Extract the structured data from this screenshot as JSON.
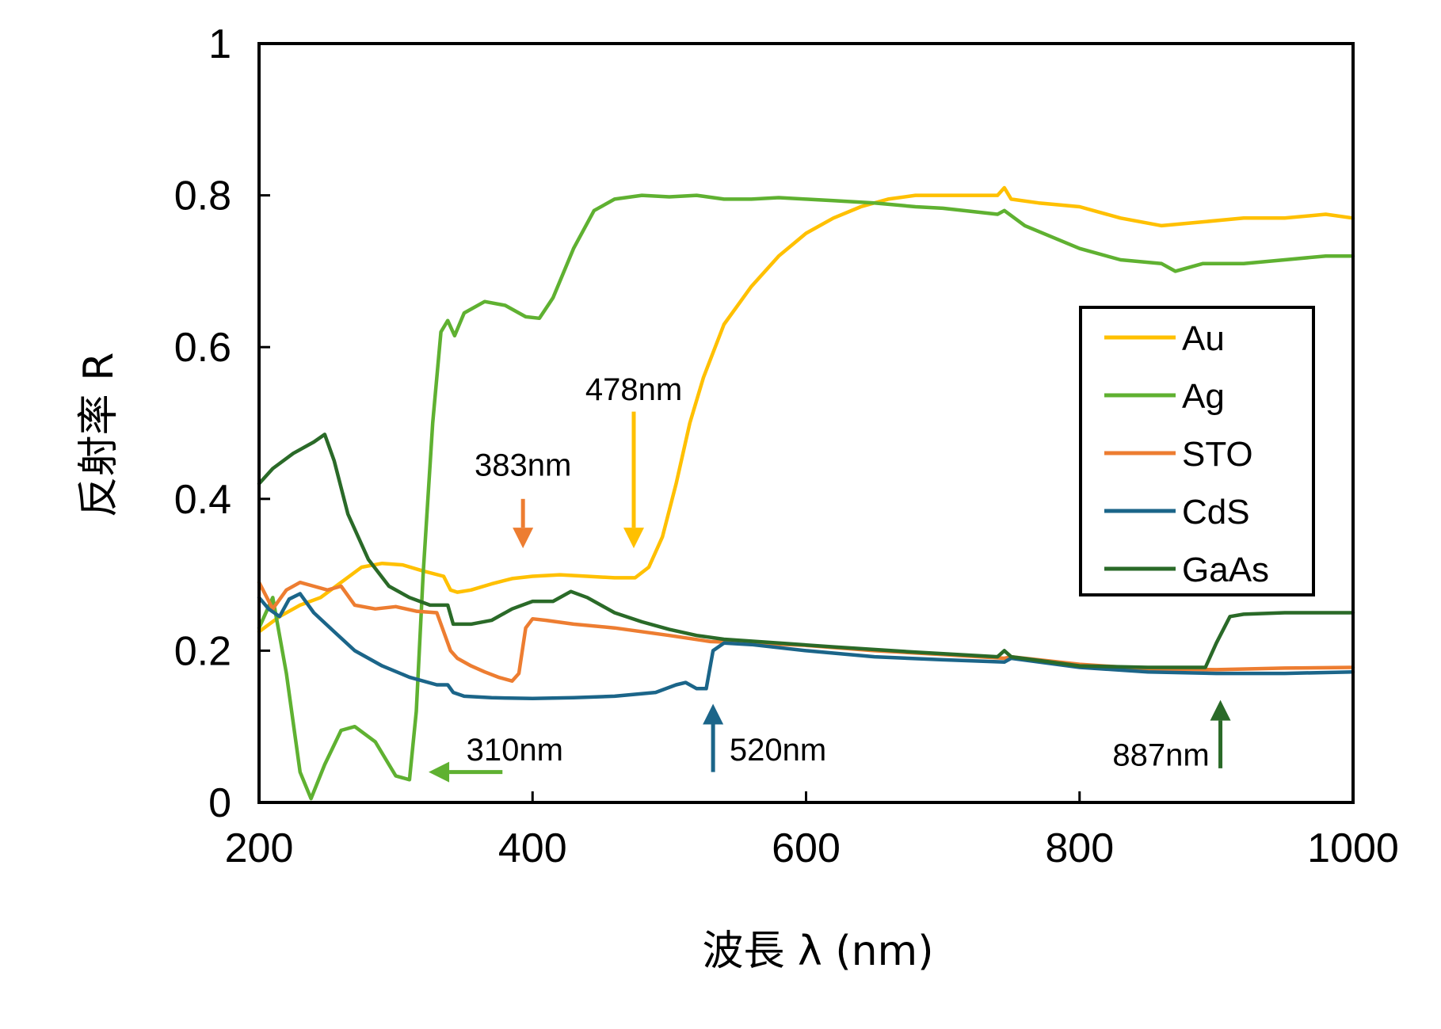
{
  "chart_data": {
    "type": "line",
    "xlabel": "波長 λ (nm)",
    "ylabel": "反射率 R",
    "xlim": [
      200,
      1000
    ],
    "ylim": [
      0,
      1
    ],
    "xticks": [
      200,
      400,
      600,
      800,
      1000
    ],
    "yticks": [
      0,
      0.2,
      0.4,
      0.6,
      0.8,
      1
    ],
    "xtick_labels": [
      "200",
      "400",
      "600",
      "800",
      "1000"
    ],
    "ytick_labels": [
      "0",
      "0.2",
      "0.4",
      "0.6",
      "0.8",
      "1"
    ],
    "grid": false,
    "legend_position": "right",
    "series": [
      {
        "name": "Au",
        "color": "#FFC000",
        "x": [
          200,
          215,
          230,
          245,
          260,
          275,
          290,
          305,
          320,
          335,
          340,
          345,
          355,
          370,
          385,
          400,
          420,
          440,
          460,
          475,
          485,
          495,
          505,
          515,
          525,
          540,
          560,
          580,
          600,
          620,
          640,
          660,
          680,
          700,
          720,
          740,
          745,
          750,
          770,
          800,
          830,
          860,
          890,
          920,
          950,
          980,
          1000
        ],
        "y": [
          0.225,
          0.245,
          0.26,
          0.27,
          0.29,
          0.31,
          0.315,
          0.313,
          0.305,
          0.298,
          0.28,
          0.277,
          0.28,
          0.288,
          0.295,
          0.298,
          0.3,
          0.298,
          0.296,
          0.296,
          0.31,
          0.35,
          0.42,
          0.5,
          0.56,
          0.63,
          0.68,
          0.72,
          0.75,
          0.77,
          0.785,
          0.795,
          0.8,
          0.8,
          0.8,
          0.8,
          0.81,
          0.795,
          0.79,
          0.785,
          0.77,
          0.76,
          0.765,
          0.77,
          0.77,
          0.775,
          0.77
        ]
      },
      {
        "name": "Ag",
        "color": "#5FB131",
        "x": [
          200,
          210,
          220,
          230,
          238,
          248,
          260,
          270,
          285,
          300,
          310,
          315,
          320,
          327,
          333,
          338,
          343,
          350,
          365,
          380,
          395,
          405,
          415,
          430,
          445,
          460,
          480,
          500,
          520,
          540,
          560,
          580,
          600,
          620,
          650,
          680,
          700,
          740,
          745,
          760,
          800,
          830,
          860,
          870,
          890,
          920,
          950,
          980,
          1000
        ],
        "y": [
          0.23,
          0.27,
          0.17,
          0.04,
          0.005,
          0.05,
          0.095,
          0.1,
          0.08,
          0.035,
          0.03,
          0.12,
          0.3,
          0.5,
          0.62,
          0.635,
          0.615,
          0.645,
          0.66,
          0.655,
          0.64,
          0.638,
          0.665,
          0.73,
          0.78,
          0.795,
          0.8,
          0.798,
          0.8,
          0.795,
          0.795,
          0.797,
          0.795,
          0.793,
          0.79,
          0.785,
          0.783,
          0.775,
          0.78,
          0.76,
          0.73,
          0.715,
          0.71,
          0.7,
          0.71,
          0.71,
          0.715,
          0.72,
          0.72
        ]
      },
      {
        "name": "STO",
        "color": "#ED7D31",
        "x": [
          200,
          210,
          220,
          230,
          240,
          250,
          260,
          270,
          285,
          300,
          315,
          330,
          340,
          345,
          355,
          365,
          375,
          385,
          390,
          395,
          400,
          410,
          430,
          460,
          500,
          530,
          560,
          600,
          650,
          700,
          745,
          750,
          800,
          850,
          900,
          950,
          1000
        ],
        "y": [
          0.29,
          0.255,
          0.28,
          0.29,
          0.285,
          0.28,
          0.285,
          0.26,
          0.255,
          0.258,
          0.252,
          0.25,
          0.2,
          0.19,
          0.18,
          0.172,
          0.165,
          0.16,
          0.17,
          0.23,
          0.242,
          0.24,
          0.235,
          0.23,
          0.22,
          0.212,
          0.21,
          0.207,
          0.2,
          0.195,
          0.19,
          0.192,
          0.182,
          0.176,
          0.175,
          0.177,
          0.178
        ]
      },
      {
        "name": "CdS",
        "color": "#1B6589",
        "x": [
          200,
          207,
          215,
          222,
          230,
          240,
          255,
          270,
          290,
          310,
          330,
          338,
          342,
          350,
          370,
          400,
          430,
          460,
          490,
          505,
          512,
          520,
          527,
          532,
          540,
          560,
          600,
          650,
          700,
          745,
          750,
          800,
          850,
          900,
          950,
          1000
        ],
        "y": [
          0.27,
          0.255,
          0.245,
          0.268,
          0.275,
          0.25,
          0.225,
          0.2,
          0.18,
          0.165,
          0.155,
          0.155,
          0.145,
          0.14,
          0.138,
          0.137,
          0.138,
          0.14,
          0.145,
          0.155,
          0.158,
          0.15,
          0.15,
          0.2,
          0.21,
          0.208,
          0.2,
          0.192,
          0.188,
          0.185,
          0.19,
          0.178,
          0.172,
          0.17,
          0.17,
          0.172
        ]
      },
      {
        "name": "GaAs",
        "color": "#2A6A28",
        "x": [
          200,
          210,
          225,
          240,
          248,
          255,
          265,
          280,
          295,
          310,
          325,
          338,
          342,
          355,
          370,
          385,
          400,
          415,
          428,
          440,
          460,
          480,
          500,
          520,
          540,
          580,
          620,
          680,
          740,
          745,
          750,
          800,
          850,
          880,
          892,
          900,
          910,
          920,
          950,
          980,
          1000
        ],
        "y": [
          0.42,
          0.44,
          0.46,
          0.475,
          0.485,
          0.45,
          0.38,
          0.32,
          0.285,
          0.27,
          0.26,
          0.26,
          0.235,
          0.235,
          0.24,
          0.255,
          0.265,
          0.265,
          0.278,
          0.27,
          0.25,
          0.238,
          0.228,
          0.22,
          0.215,
          0.21,
          0.205,
          0.198,
          0.192,
          0.2,
          0.192,
          0.18,
          0.178,
          0.178,
          0.178,
          0.21,
          0.245,
          0.248,
          0.25,
          0.25,
          0.25
        ]
      }
    ],
    "annotations": [
      {
        "label": "383nm",
        "color": "#ED7D31",
        "x": 393,
        "y_from": 0.4,
        "y_to": 0.335,
        "direction": "down",
        "label_x": 393,
        "label_y": 0.445,
        "anchor": "middle"
      },
      {
        "label": "478nm",
        "color": "#FFC000",
        "x": 474,
        "y_from": 0.515,
        "y_to": 0.335,
        "direction": "down",
        "label_x": 474,
        "label_y": 0.545,
        "anchor": "middle"
      },
      {
        "label": "310nm",
        "color": "#5FB131",
        "x1": 378,
        "x2": 324,
        "y": 0.04,
        "direction": "left",
        "label_x": 387,
        "label_y": 0.07,
        "anchor": "middle"
      },
      {
        "label": "520nm",
        "color": "#1B6589",
        "x": 532,
        "y_from": 0.04,
        "y_to": 0.13,
        "direction": "up",
        "label_x": 544,
        "label_y": 0.07,
        "anchor": "start"
      },
      {
        "label": "887nm",
        "color": "#2A6A28",
        "x": 903,
        "y_from": 0.045,
        "y_to": 0.135,
        "direction": "up",
        "label_x": 895,
        "label_y": 0.063,
        "anchor": "end"
      }
    ]
  }
}
